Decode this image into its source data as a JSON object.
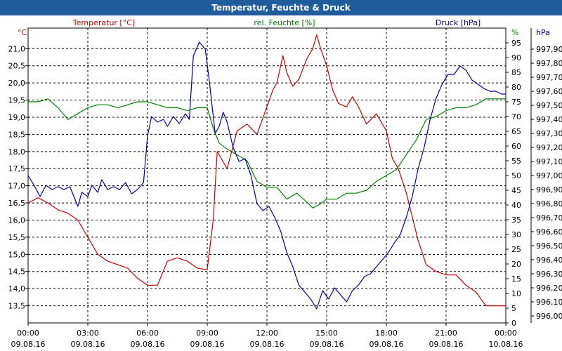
{
  "chart_data": {
    "type": "line",
    "title": "Temperatur, Feuchte & Druck",
    "x_ticks": [
      {
        "hour": 0,
        "time": "00:00",
        "date": "09.08.16"
      },
      {
        "hour": 3,
        "time": "03:00",
        "date": "09.08.16"
      },
      {
        "hour": 6,
        "time": "06:00",
        "date": "09.08.16"
      },
      {
        "hour": 9,
        "time": "09:00",
        "date": "09.08.16"
      },
      {
        "hour": 12,
        "time": "12:00",
        "date": "09.08.16"
      },
      {
        "hour": 15,
        "time": "15:00",
        "date": "09.08.16"
      },
      {
        "hour": 18,
        "time": "18:00",
        "date": "09.08.16"
      },
      {
        "hour": 21,
        "time": "21:00",
        "date": "09.08.16"
      },
      {
        "hour": 24,
        "time": "00:00",
        "date": "10.08.16"
      }
    ],
    "xlim": [
      0,
      24
    ],
    "axes": {
      "temperature": {
        "label": "Temperatur [°C]",
        "unit": "°C",
        "color": "#cc0000",
        "ylim": [
          13.0,
          21.6
        ],
        "ticks": [
          "13,5",
          "14,0",
          "14,5",
          "15,0",
          "15,5",
          "16,0",
          "16,5",
          "17,0",
          "17,5",
          "18,0",
          "18,5",
          "19,0",
          "19,5",
          "20,0",
          "20,5",
          "21,0"
        ]
      },
      "humidity": {
        "label": "rel. Feuchte [%]",
        "unit": "%",
        "color": "#008000",
        "ylim": [
          0,
          100
        ],
        "ticks": [
          "0",
          "5",
          "10",
          "15",
          "20",
          "25",
          "30",
          "35",
          "40",
          "45",
          "50",
          "55",
          "60",
          "65",
          "70",
          "75",
          "80",
          "85",
          "90",
          "95"
        ]
      },
      "pressure": {
        "label": "Druck [hPa]",
        "unit": "hPa",
        "color": "#000099",
        "ylim": [
          995.95,
          998.05
        ],
        "ticks": [
          "996,00",
          "996,10",
          "996,20",
          "996,30",
          "996,40",
          "996,50",
          "996,60",
          "996,70",
          "996,80",
          "996,90",
          "997,00",
          "997,10",
          "997,20",
          "997,30",
          "997,40",
          "997,50",
          "997,60",
          "997,70",
          "997,80",
          "997,90"
        ]
      }
    },
    "series": [
      {
        "name": "Temperatur",
        "axis": "temperature",
        "color": "#cc0000",
        "points": [
          [
            0,
            16.5
          ],
          [
            0.5,
            16.65
          ],
          [
            1,
            16.5
          ],
          [
            1.5,
            16.3
          ],
          [
            2,
            16.2
          ],
          [
            2.5,
            16.0
          ],
          [
            3,
            15.5
          ],
          [
            3.5,
            15.0
          ],
          [
            4,
            14.8
          ],
          [
            4.5,
            14.7
          ],
          [
            5,
            14.6
          ],
          [
            5.5,
            14.3
          ],
          [
            6,
            14.1
          ],
          [
            6.5,
            14.1
          ],
          [
            7,
            14.8
          ],
          [
            7.5,
            14.9
          ],
          [
            8,
            14.8
          ],
          [
            8.5,
            14.6
          ],
          [
            9,
            14.55
          ],
          [
            9.3,
            16.0
          ],
          [
            9.5,
            18.0
          ],
          [
            9.8,
            17.7
          ],
          [
            10,
            17.5
          ],
          [
            10.5,
            18.6
          ],
          [
            11,
            18.8
          ],
          [
            11.5,
            18.5
          ],
          [
            12,
            19.3
          ],
          [
            12.3,
            19.8
          ],
          [
            12.5,
            20.0
          ],
          [
            12.8,
            20.8
          ],
          [
            13,
            20.3
          ],
          [
            13.3,
            19.9
          ],
          [
            13.6,
            20.1
          ],
          [
            14,
            20.7
          ],
          [
            14.3,
            21.0
          ],
          [
            14.5,
            21.4
          ],
          [
            14.7,
            21.0
          ],
          [
            15,
            20.5
          ],
          [
            15.3,
            19.8
          ],
          [
            15.6,
            19.4
          ],
          [
            16,
            19.3
          ],
          [
            16.3,
            19.6
          ],
          [
            16.6,
            19.3
          ],
          [
            17,
            18.8
          ],
          [
            17.5,
            19.1
          ],
          [
            18,
            18.6
          ],
          [
            18.3,
            17.8
          ],
          [
            18.6,
            17.5
          ],
          [
            19,
            16.8
          ],
          [
            19.3,
            16.1
          ],
          [
            19.6,
            15.4
          ],
          [
            20,
            14.7
          ],
          [
            20.5,
            14.5
          ],
          [
            21,
            14.4
          ],
          [
            21.5,
            14.4
          ],
          [
            22,
            14.1
          ],
          [
            22.5,
            13.9
          ],
          [
            23,
            13.5
          ],
          [
            23.5,
            13.5
          ],
          [
            24,
            13.5
          ]
        ]
      },
      {
        "name": "rel. Feuchte",
        "axis": "humidity",
        "color": "#008000",
        "points": [
          [
            0,
            75
          ],
          [
            0.5,
            75
          ],
          [
            1,
            76
          ],
          [
            1.5,
            73
          ],
          [
            2,
            69
          ],
          [
            2.5,
            71
          ],
          [
            3,
            73
          ],
          [
            3.5,
            74
          ],
          [
            4,
            74
          ],
          [
            4.5,
            73
          ],
          [
            5,
            74
          ],
          [
            5.5,
            75
          ],
          [
            6,
            75
          ],
          [
            6.5,
            74
          ],
          [
            7,
            73
          ],
          [
            7.5,
            73
          ],
          [
            8,
            72
          ],
          [
            8.5,
            73
          ],
          [
            9,
            73
          ],
          [
            9.3,
            66
          ],
          [
            9.6,
            61
          ],
          [
            10,
            59
          ],
          [
            10.5,
            57
          ],
          [
            11,
            55
          ],
          [
            11.5,
            48
          ],
          [
            12,
            46
          ],
          [
            12.5,
            46
          ],
          [
            13,
            42
          ],
          [
            13.5,
            44
          ],
          [
            14,
            41
          ],
          [
            14.3,
            39
          ],
          [
            14.6,
            40
          ],
          [
            15,
            42
          ],
          [
            15.5,
            42
          ],
          [
            16,
            44
          ],
          [
            16.5,
            44
          ],
          [
            17,
            45
          ],
          [
            17.5,
            48
          ],
          [
            18,
            50
          ],
          [
            18.5,
            52
          ],
          [
            19,
            57
          ],
          [
            19.5,
            62
          ],
          [
            20,
            69
          ],
          [
            20.5,
            70
          ],
          [
            21,
            72
          ],
          [
            21.5,
            73
          ],
          [
            22,
            73
          ],
          [
            22.5,
            74
          ],
          [
            23,
            76
          ],
          [
            23.5,
            76
          ],
          [
            24,
            76
          ]
        ]
      },
      {
        "name": "Druck",
        "axis": "pressure",
        "color": "#000099",
        "points": [
          [
            0,
            997.0
          ],
          [
            0.3,
            996.93
          ],
          [
            0.6,
            996.85
          ],
          [
            0.9,
            996.93
          ],
          [
            1.2,
            996.9
          ],
          [
            1.5,
            996.92
          ],
          [
            1.8,
            996.9
          ],
          [
            2.1,
            996.92
          ],
          [
            2.3,
            996.85
          ],
          [
            2.5,
            996.78
          ],
          [
            2.7,
            996.88
          ],
          [
            3,
            996.85
          ],
          [
            3.2,
            996.93
          ],
          [
            3.5,
            996.88
          ],
          [
            3.7,
            996.97
          ],
          [
            4,
            996.9
          ],
          [
            4.3,
            996.92
          ],
          [
            4.6,
            996.9
          ],
          [
            4.9,
            996.95
          ],
          [
            5.2,
            996.87
          ],
          [
            5.5,
            996.9
          ],
          [
            5.8,
            996.95
          ],
          [
            6,
            997.28
          ],
          [
            6.2,
            997.42
          ],
          [
            6.5,
            997.38
          ],
          [
            6.8,
            997.4
          ],
          [
            7,
            997.35
          ],
          [
            7.3,
            997.42
          ],
          [
            7.6,
            997.37
          ],
          [
            7.9,
            997.44
          ],
          [
            8.1,
            997.4
          ],
          [
            8.3,
            997.85
          ],
          [
            8.6,
            997.95
          ],
          [
            8.9,
            997.9
          ],
          [
            9.1,
            997.68
          ],
          [
            9.4,
            997.3
          ],
          [
            9.6,
            997.35
          ],
          [
            9.8,
            997.45
          ],
          [
            10,
            997.38
          ],
          [
            10.3,
            997.2
          ],
          [
            10.6,
            997.1
          ],
          [
            10.9,
            997.12
          ],
          [
            11.2,
            997.0
          ],
          [
            11.5,
            996.8
          ],
          [
            11.8,
            996.75
          ],
          [
            12.1,
            996.78
          ],
          [
            12.4,
            996.7
          ],
          [
            12.7,
            996.6
          ],
          [
            13,
            996.45
          ],
          [
            13.3,
            996.35
          ],
          [
            13.6,
            996.22
          ],
          [
            13.9,
            996.17
          ],
          [
            14.2,
            996.12
          ],
          [
            14.5,
            996.05
          ],
          [
            14.8,
            996.18
          ],
          [
            15.1,
            996.12
          ],
          [
            15.4,
            996.2
          ],
          [
            15.7,
            996.15
          ],
          [
            16,
            996.1
          ],
          [
            16.3,
            996.18
          ],
          [
            16.6,
            996.22
          ],
          [
            16.9,
            996.28
          ],
          [
            17.2,
            996.3
          ],
          [
            17.5,
            996.35
          ],
          [
            17.8,
            996.4
          ],
          [
            18.1,
            996.45
          ],
          [
            18.4,
            996.52
          ],
          [
            18.7,
            996.58
          ],
          [
            19,
            996.7
          ],
          [
            19.3,
            996.85
          ],
          [
            19.6,
            997.05
          ],
          [
            19.9,
            997.2
          ],
          [
            20.2,
            997.4
          ],
          [
            20.5,
            997.55
          ],
          [
            20.8,
            997.65
          ],
          [
            21.1,
            997.72
          ],
          [
            21.4,
            997.72
          ],
          [
            21.7,
            997.78
          ],
          [
            22,
            997.75
          ],
          [
            22.3,
            997.68
          ],
          [
            22.6,
            997.65
          ],
          [
            22.9,
            997.62
          ],
          [
            23.2,
            997.6
          ],
          [
            23.5,
            997.6
          ],
          [
            23.8,
            997.58
          ],
          [
            24,
            997.58
          ]
        ]
      }
    ]
  }
}
